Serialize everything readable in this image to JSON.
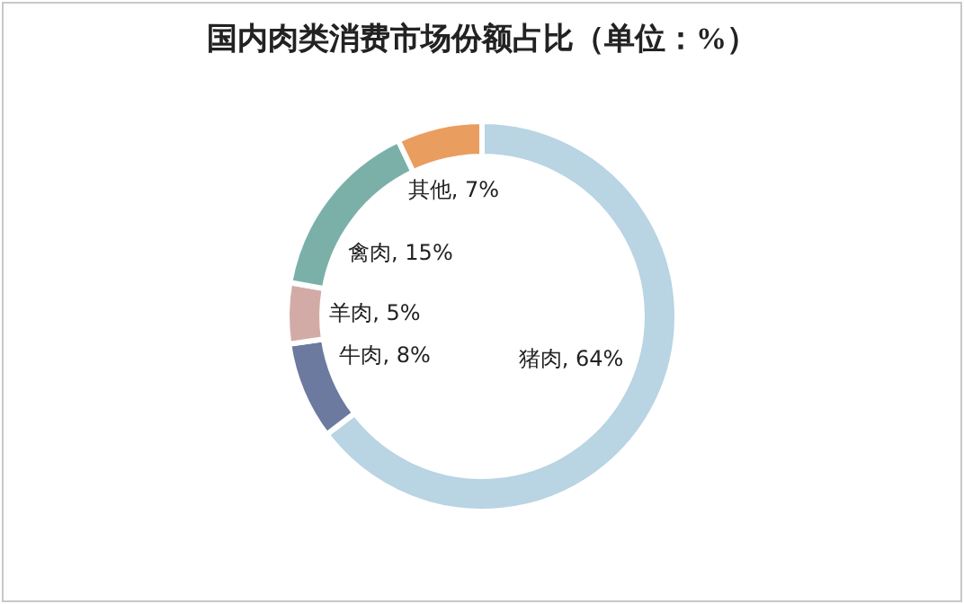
{
  "chart_data": {
    "type": "donut",
    "title": "国内肉类消费市场份额占比（单位：%）",
    "categories": [
      "猪肉",
      "牛肉",
      "羊肉",
      "禽肉",
      "其他"
    ],
    "values": [
      64,
      8,
      5,
      15,
      7
    ],
    "colors": [
      "#b9d4e3",
      "#6d7a9f",
      "#d3aba6",
      "#7bb0a9",
      "#e99d5e"
    ],
    "value_labels": [
      "64%",
      "8%",
      "5%",
      "15%",
      "7%"
    ],
    "legend": false
  }
}
